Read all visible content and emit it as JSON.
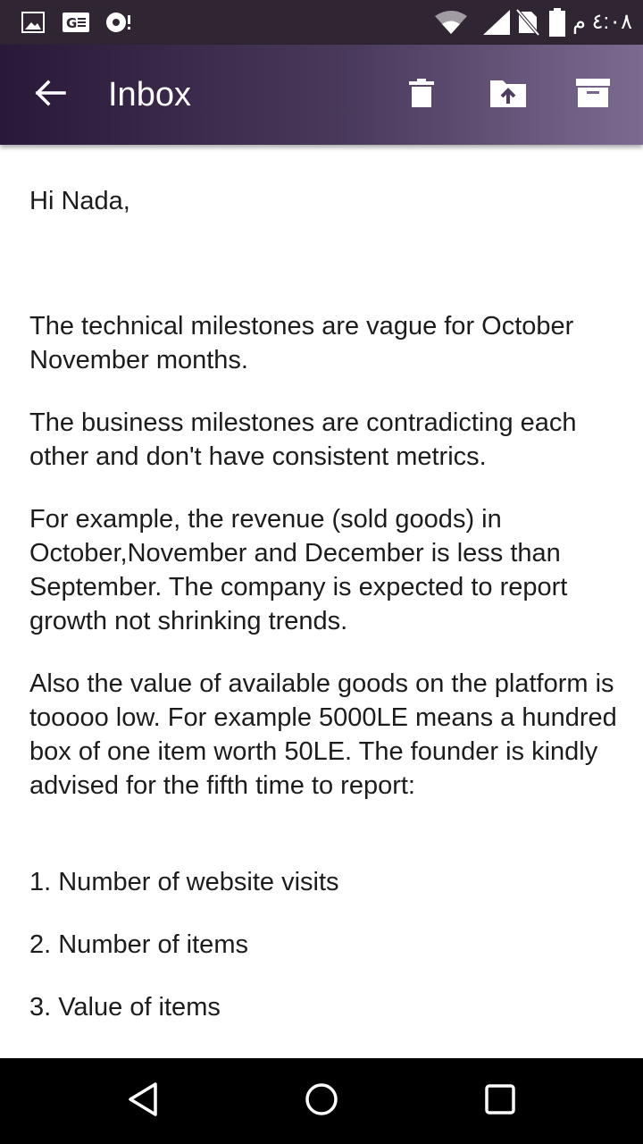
{
  "status_bar": {
    "time": "٤:٠٨ م",
    "icons": [
      "image-icon",
      "g-box-icon",
      "notification-icon",
      "wifi-icon",
      "signal-icon",
      "no-sim-icon",
      "battery-icon"
    ]
  },
  "app_bar": {
    "title": "Inbox",
    "actions": [
      "delete-icon",
      "move-to-folder-icon",
      "archive-icon"
    ]
  },
  "email": {
    "greeting": "Hi Nada,",
    "paragraphs": [
      "The technical milestones are vague for October November months.",
      "The business milestones are contradicting each other and don't have consistent metrics.",
      "For example, the revenue (sold goods) in October,November and December is less than September. The company is expected to report growth not shrinking trends.",
      "Also the value of available goods on the platform is tooooo low. For example 5000LE means a hundred box of one item worth 50LE. The founder is kindly advised for the fifth time to report:"
    ],
    "list": [
      "1. Number of website visits",
      "2. Number of items",
      "3. Value of items"
    ]
  },
  "nav_bar": {
    "buttons": [
      "back-triangle-icon",
      "home-circle-icon",
      "recents-square-icon"
    ]
  },
  "colors": {
    "app_bar_start": "#2a1838",
    "app_bar_end": "#7d6a91",
    "status_bar": "#2f2533",
    "nav_bar": "#000000",
    "text": "#1c1c1c"
  }
}
